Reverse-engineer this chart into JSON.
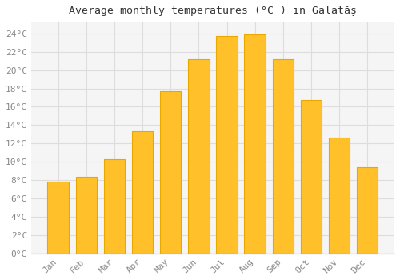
{
  "title": "Average monthly temperatures (°C ) in Galatăş",
  "months": [
    "Jan",
    "Feb",
    "Mar",
    "Apr",
    "May",
    "Jun",
    "Jul",
    "Aug",
    "Sep",
    "Oct",
    "Nov",
    "Dec"
  ],
  "values": [
    7.8,
    8.4,
    10.3,
    13.3,
    17.7,
    21.2,
    23.7,
    23.9,
    21.2,
    16.7,
    12.6,
    9.4
  ],
  "bar_color": "#FFC02A",
  "bar_edge_color": "#E8A800",
  "background_color": "#FFFFFF",
  "plot_bg_color": "#F5F5F5",
  "grid_color": "#DDDDDD",
  "ylabel_ticks": [
    "0°C",
    "2°C",
    "4°C",
    "6°C",
    "8°C",
    "10°C",
    "12°C",
    "14°C",
    "16°C",
    "18°C",
    "20°C",
    "22°C",
    "24°C"
  ],
  "ytick_values": [
    0,
    2,
    4,
    6,
    8,
    10,
    12,
    14,
    16,
    18,
    20,
    22,
    24
  ],
  "ylim": [
    0,
    25.2
  ],
  "title_fontsize": 9.5,
  "tick_fontsize": 8,
  "tick_color": "#888888",
  "font_family": "monospace",
  "figsize": [
    5.0,
    3.5
  ],
  "dpi": 100
}
